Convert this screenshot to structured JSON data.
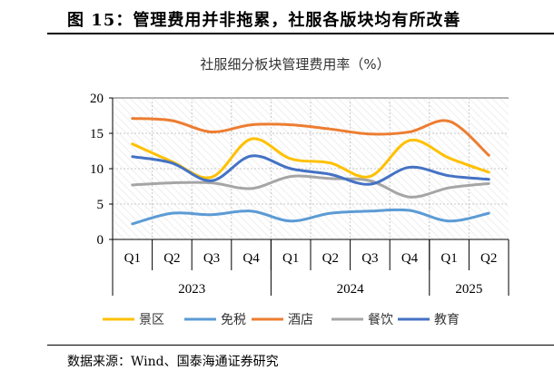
{
  "figure_title": "图 15：管理费用并非拖累，社服各版块均有所改善",
  "source": "数据来源：Wind、国泰海通证券研究",
  "chart_data": {
    "type": "line",
    "title": "社服细分板块管理费用率（%）",
    "categories": [
      "Q1",
      "Q2",
      "Q3",
      "Q4",
      "Q1",
      "Q2",
      "Q3",
      "Q4",
      "Q1",
      "Q2"
    ],
    "groups": [
      {
        "label": "2023",
        "count": 4
      },
      {
        "label": "2024",
        "count": 4
      },
      {
        "label": "2025",
        "count": 2
      }
    ],
    "ylim": [
      0,
      20
    ],
    "yticks": [
      0,
      5,
      10,
      15,
      20
    ],
    "grid": true,
    "smooth": true,
    "legend": "bottom",
    "series": [
      {
        "name": "景区",
        "color": "#FFC000",
        "values": [
          13.5,
          11.0,
          8.8,
          14.2,
          11.4,
          10.8,
          8.9,
          14.0,
          11.5,
          9.5
        ]
      },
      {
        "name": "免税",
        "color": "#5B9BD5",
        "values": [
          2.2,
          3.7,
          3.5,
          4.0,
          2.6,
          3.7,
          4.0,
          4.1,
          2.6,
          3.7
        ]
      },
      {
        "name": "酒店",
        "color": "#ED7D31",
        "values": [
          17.1,
          16.8,
          15.2,
          16.2,
          16.2,
          15.6,
          14.9,
          15.2,
          16.7,
          11.9
        ]
      },
      {
        "name": "餐饮",
        "color": "#A5A5A5",
        "values": [
          7.7,
          8.0,
          8.0,
          7.2,
          8.9,
          8.6,
          8.3,
          6.0,
          7.3,
          7.9
        ]
      },
      {
        "name": "教育",
        "color": "#4472C4",
        "values": [
          11.7,
          10.8,
          8.3,
          11.8,
          10.0,
          9.2,
          7.8,
          10.2,
          9.0,
          8.5
        ]
      }
    ]
  }
}
